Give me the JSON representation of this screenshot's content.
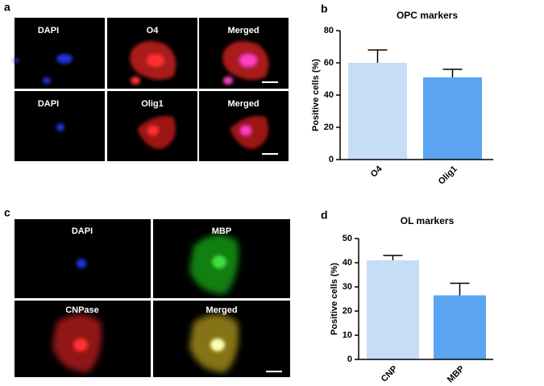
{
  "panels": [
    {
      "label": "a",
      "images": [
        "DAPI",
        "O4",
        "Merged",
        "DAPI",
        "Olig1",
        "Merged"
      ]
    },
    {
      "label": "c",
      "images": [
        "DAPI",
        "MBP",
        "CNPase",
        "Merged"
      ]
    }
  ],
  "chart_data": [
    {
      "type": "bar",
      "panel": "b",
      "title": "OPC markers",
      "ylabel": "Positive cells (%)",
      "categories": [
        "O4",
        "Olig1"
      ],
      "values": [
        60,
        51
      ],
      "errors": [
        8,
        5
      ],
      "colors": [
        "#c6ddf6",
        "#5ba4f1"
      ],
      "ylim": [
        0,
        80
      ],
      "yticks": [
        0,
        20,
        40,
        60,
        80
      ]
    },
    {
      "type": "bar",
      "panel": "d",
      "title": "OL markers",
      "ylabel": "Positive cells (%)",
      "categories": [
        "CNP",
        "MBP"
      ],
      "values": [
        41,
        26.5
      ],
      "errors": [
        2,
        5
      ],
      "colors": [
        "#c6ddf6",
        "#5ba4f1"
      ],
      "ylim": [
        0,
        50
      ],
      "yticks": [
        0,
        10,
        20,
        30,
        40,
        50
      ]
    }
  ]
}
